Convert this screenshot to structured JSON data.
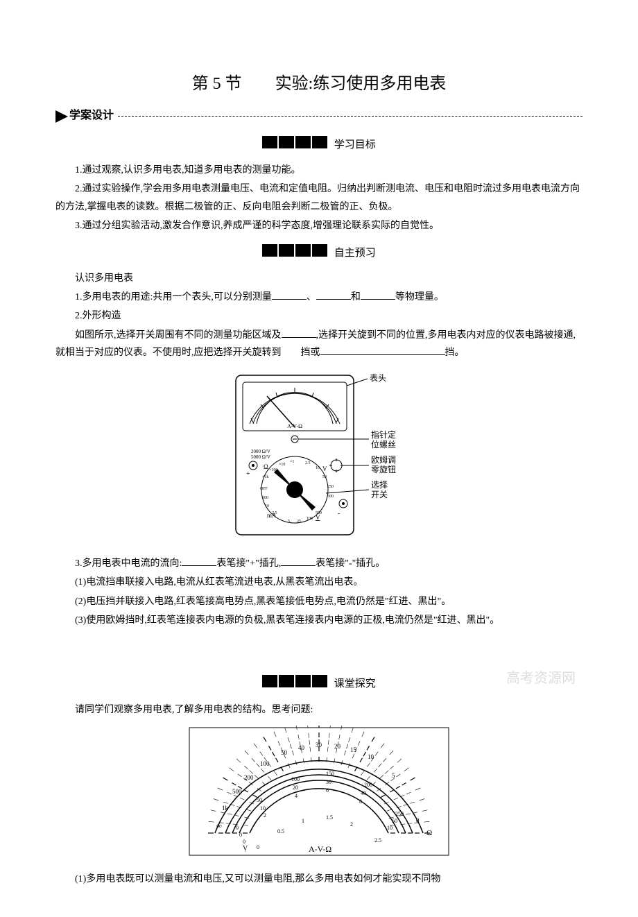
{
  "title": "第 5 节　　实验:练习使用多用电表",
  "design_label": "学案设计",
  "headings": {
    "goals": "学习目标",
    "preview": "自主预习",
    "explore": "课堂探究"
  },
  "goals": {
    "g1": "1.通过观察,认识多用电表,知道多用电表的测量功能。",
    "g2": "2.通过实验操作,学会用多用电表测量电压、电流和定值电阻。归纳出判断测电流、电压和电阻时流过多用电表电流方向的方法,掌握电表的读数。根据二极管的正、反向电阻会判断二极管的正、负极。",
    "g3": "3.通过分组实验活动,激发合作意识,养成严谨的科学态度,增强理论联系实际的自觉性。"
  },
  "preview": {
    "intro": "认识多用电表",
    "p1a": "1.多用电表的用途:共用一个表头,可以分别测量",
    "p1b": "、",
    "p1c": "和",
    "p1d": "等物理量。",
    "p2": "2.外形构造",
    "p2a": "如图所示,选择开关周围有不同的测量功能区域及",
    "p2b": ",选择开关旋到不同的位置,多用电表内对应的仪表电路被接通,就相当于对应的仪表。不使用时,应把选择开关旋转到　　挡或",
    "p2c": "挡。",
    "p3a": "3.多用电表中电流的流向:",
    "p3b": "表笔接\"+\"插孔,",
    "p3c": "表笔接\"-\"插孔。",
    "p3_1": "(1)电流挡串联接入电路,电流从红表笔流进电表,从黑表笔流出电表。",
    "p3_2": "(2)电压挡并联接入电路,红表笔接高电势点,黑表笔接低电势点,电流仍然是\"红进、黑出\"。",
    "p3_3": "(3)使用欧姆挡时,红表笔连接表内电源的负极,黑表笔连接表内电源的正极,电流仍然是\"红进、黑出\"。"
  },
  "explore": {
    "intro": "请同学们观察多用电表,了解多用电表的结构。思考问题:",
    "q1": "(1)多用电表既可以测量电流和电压,又可以测量电阻,那么多用电表如何才能实现不同物"
  },
  "meter_labels": {
    "head": "表头",
    "zero_screw1": "指针定",
    "zero_screw2": "位螺丝",
    "ohm_adj1": "欧姆调",
    "ohm_adj2": "零旋钮",
    "switch1": "选择",
    "switch2": "开关",
    "avohm": "A-V-Ω",
    "ohm": "Ω",
    "v": "V",
    "ma": "mA",
    "v2": "V"
  },
  "dial_labels": {
    "top": [
      "1k",
      "500",
      "200",
      "100",
      "50",
      "40",
      "30",
      "20",
      "15",
      "10",
      "5",
      "0"
    ],
    "mid_top": [
      "0",
      "50",
      "100",
      "150",
      "200",
      "250"
    ],
    "mid_a": [
      "0",
      "10",
      "20",
      "30",
      "40",
      "50"
    ],
    "mid_b": [
      "0",
      "2",
      "4",
      "6",
      "8",
      "10"
    ],
    "bot": [
      "0",
      "0.5",
      "1",
      "1.5",
      "2",
      "2.5"
    ],
    "ohm_sym": "Ω",
    "inf": "∞",
    "av": "A-V-Ω",
    "vwave": "Ṿ"
  },
  "watermark": "高考资源网"
}
